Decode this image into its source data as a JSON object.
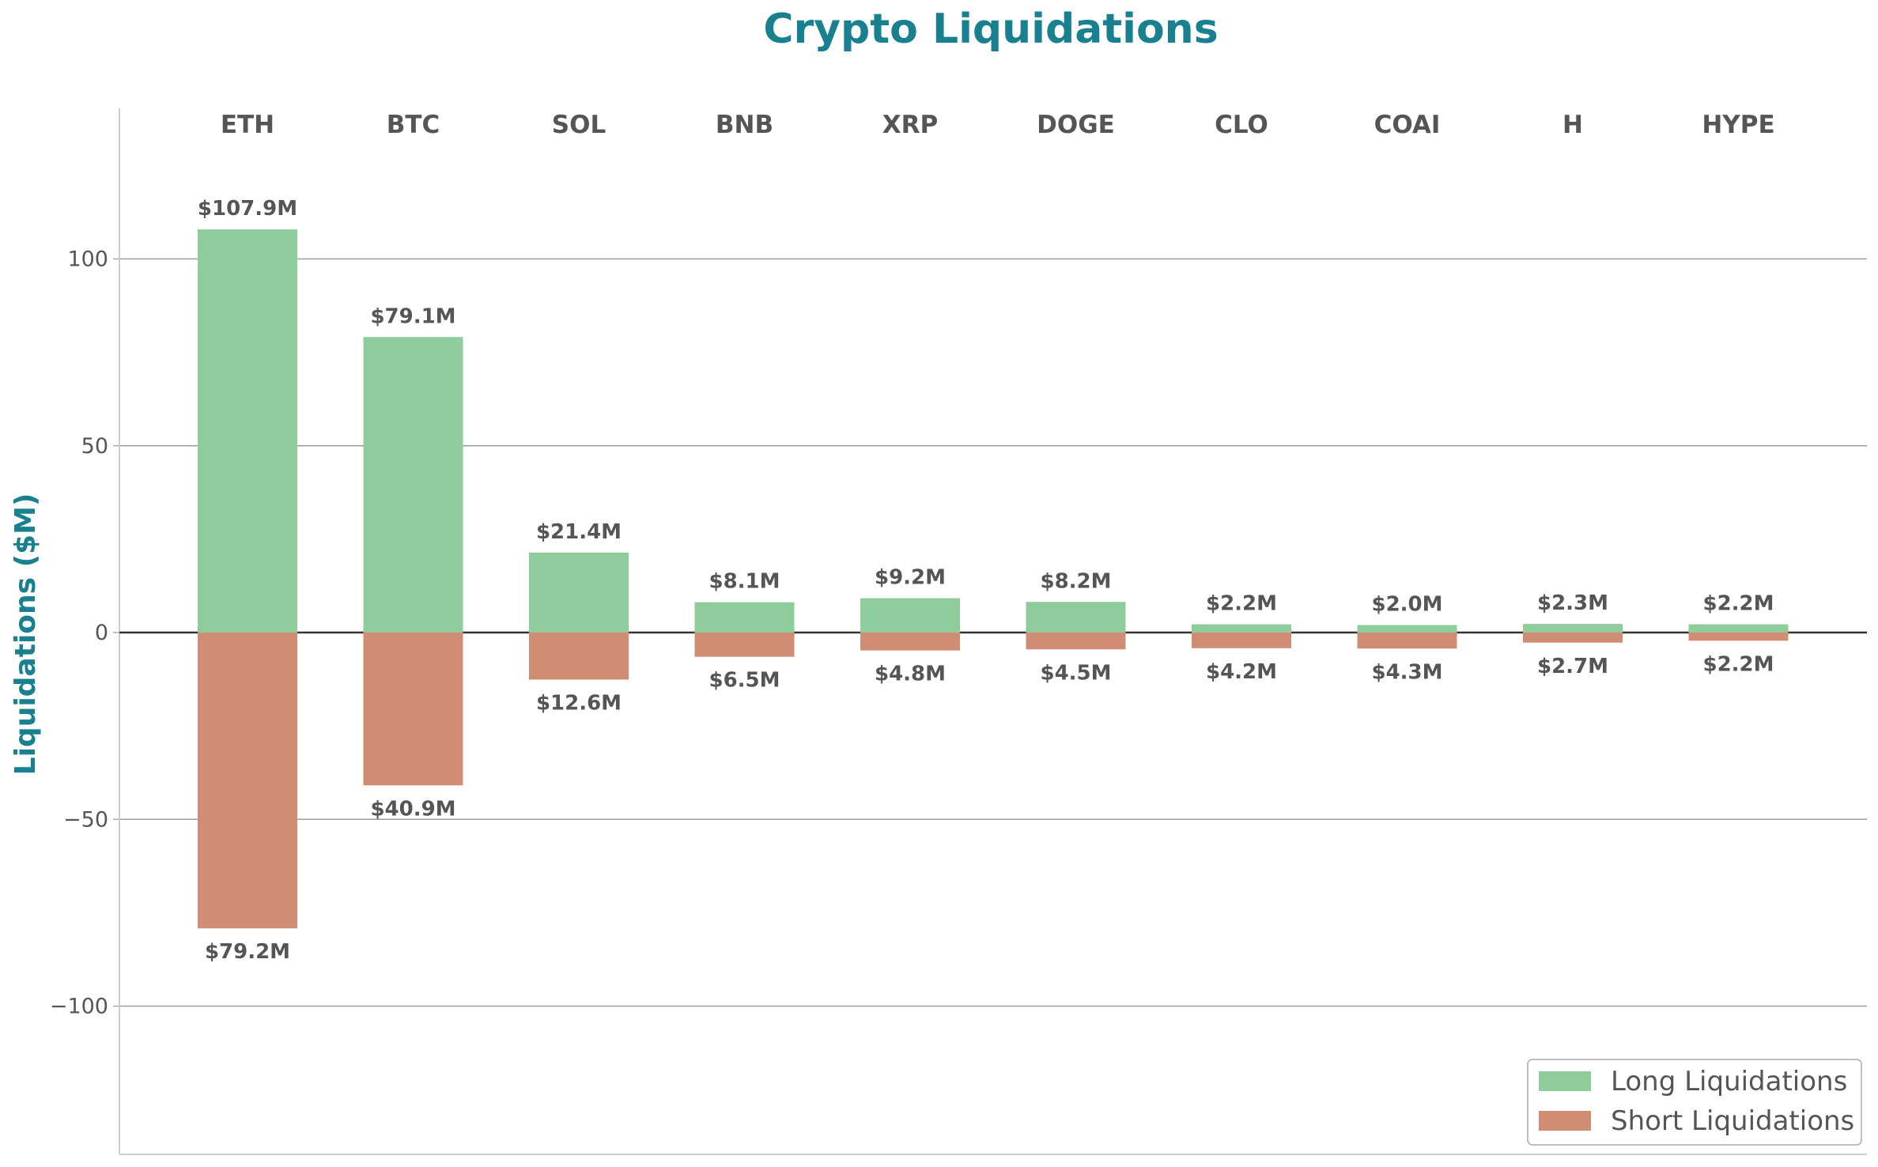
{
  "chart_data": {
    "type": "bar",
    "title": "Crypto Liquidations",
    "xlabel": "",
    "ylabel": "Liquidations ($M)",
    "ylim": [
      -140,
      140
    ],
    "yticks": [
      100,
      50,
      0,
      -50,
      -100
    ],
    "ytick_labels": [
      "100",
      "50",
      "0",
      "−50",
      "−100"
    ],
    "grid": true,
    "legend_position": "bottom-right",
    "categories": [
      "ETH",
      "BTC",
      "SOL",
      "BNB",
      "XRP",
      "DOGE",
      "CLO",
      "COAI",
      "H",
      "HYPE"
    ],
    "series": [
      {
        "name": "Long Liquidations",
        "color": "#8fcc9c",
        "values": [
          107.9,
          79.1,
          21.4,
          8.1,
          9.2,
          8.2,
          2.2,
          2.0,
          2.3,
          2.2
        ],
        "labels": [
          "$107.9M",
          "$79.1M",
          "$21.4M",
          "$8.1M",
          "$9.2M",
          "$8.2M",
          "$2.2M",
          "$2.0M",
          "$2.3M",
          "$2.2M"
        ]
      },
      {
        "name": "Short Liquidations",
        "color": "#d18c74",
        "values": [
          -79.2,
          -40.9,
          -12.6,
          -6.5,
          -4.8,
          -4.5,
          -4.2,
          -4.3,
          -2.7,
          -2.2
        ],
        "labels": [
          "$79.2M",
          "$40.9M",
          "$12.6M",
          "$6.5M",
          "$4.8M",
          "$4.5M",
          "$4.2M",
          "$4.3M",
          "$2.7M",
          "$2.2M"
        ]
      }
    ]
  }
}
